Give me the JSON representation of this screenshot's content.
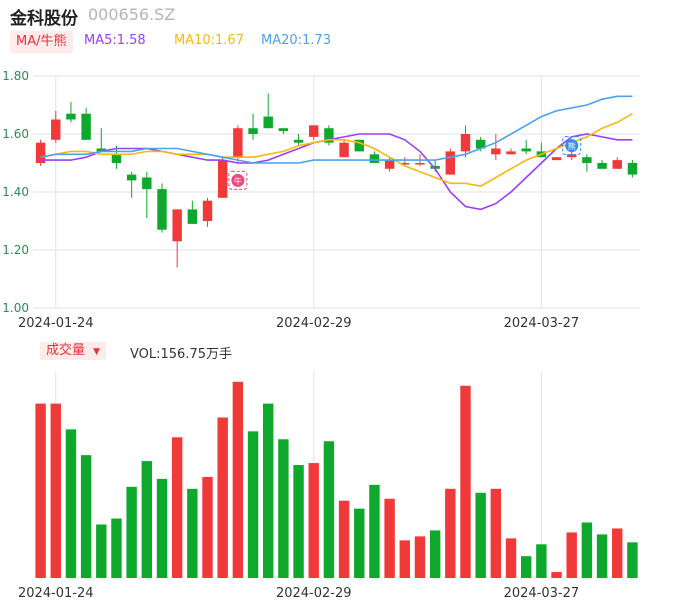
{
  "stock": {
    "name": "金科股份",
    "code": "000656.SZ"
  },
  "ma_legend": {
    "badge": "MA/牛熊",
    "items": [
      {
        "label": "MA5:1.58",
        "color": "#9b3ff5"
      },
      {
        "label": "MA10:1.67",
        "color": "#f5b90f"
      },
      {
        "label": "MA20:1.73",
        "color": "#4aa3ef"
      }
    ]
  },
  "volume_legend": {
    "badge": "成交量",
    "text": "VOL:156.75万手"
  },
  "markers": {
    "bull": "牛",
    "bear": "熊"
  },
  "colors": {
    "up": "#f03a3a",
    "down": "#0da82c",
    "axis": "#2e8b57",
    "grid": "#e3e3e3"
  },
  "chart_data": {
    "type": "candlestick",
    "x_ticks": [
      "2024-01-24",
      "2024-02-29",
      "2024-03-27"
    ],
    "x_tick_index": [
      1,
      18,
      33
    ],
    "y_ticks": [
      "1.80",
      "1.60",
      "1.40",
      "1.20",
      "1.00"
    ],
    "ylim": [
      1.0,
      1.8
    ],
    "candles": [
      {
        "o": 1.5,
        "h": 1.58,
        "l": 1.49,
        "c": 1.57
      },
      {
        "o": 1.58,
        "h": 1.68,
        "l": 1.57,
        "c": 1.65
      },
      {
        "o": 1.67,
        "h": 1.71,
        "l": 1.64,
        "c": 1.65
      },
      {
        "o": 1.67,
        "h": 1.69,
        "l": 1.58,
        "c": 1.58
      },
      {
        "o": 1.55,
        "h": 1.62,
        "l": 1.54,
        "c": 1.54
      },
      {
        "o": 1.53,
        "h": 1.56,
        "l": 1.48,
        "c": 1.5
      },
      {
        "o": 1.46,
        "h": 1.47,
        "l": 1.38,
        "c": 1.44
      },
      {
        "o": 1.45,
        "h": 1.47,
        "l": 1.31,
        "c": 1.41
      },
      {
        "o": 1.41,
        "h": 1.43,
        "l": 1.26,
        "c": 1.27
      },
      {
        "o": 1.23,
        "h": 1.34,
        "l": 1.14,
        "c": 1.34
      },
      {
        "o": 1.34,
        "h": 1.37,
        "l": 1.29,
        "c": 1.29
      },
      {
        "o": 1.3,
        "h": 1.38,
        "l": 1.28,
        "c": 1.37
      },
      {
        "o": 1.38,
        "h": 1.52,
        "l": 1.38,
        "c": 1.51
      },
      {
        "o": 1.52,
        "h": 1.63,
        "l": 1.5,
        "c": 1.62
      },
      {
        "o": 1.62,
        "h": 1.67,
        "l": 1.58,
        "c": 1.6
      },
      {
        "o": 1.66,
        "h": 1.74,
        "l": 1.62,
        "c": 1.62
      },
      {
        "o": 1.62,
        "h": 1.62,
        "l": 1.6,
        "c": 1.61
      },
      {
        "o": 1.58,
        "h": 1.6,
        "l": 1.56,
        "c": 1.57
      },
      {
        "o": 1.59,
        "h": 1.63,
        "l": 1.58,
        "c": 1.63
      },
      {
        "o": 1.62,
        "h": 1.63,
        "l": 1.56,
        "c": 1.57
      },
      {
        "o": 1.52,
        "h": 1.58,
        "l": 1.52,
        "c": 1.57
      },
      {
        "o": 1.58,
        "h": 1.58,
        "l": 1.54,
        "c": 1.54
      },
      {
        "o": 1.53,
        "h": 1.54,
        "l": 1.5,
        "c": 1.5
      },
      {
        "o": 1.48,
        "h": 1.52,
        "l": 1.47,
        "c": 1.51
      },
      {
        "o": 1.5,
        "h": 1.52,
        "l": 1.49,
        "c": 1.5
      },
      {
        "o": 1.5,
        "h": 1.53,
        "l": 1.49,
        "c": 1.5
      },
      {
        "o": 1.49,
        "h": 1.51,
        "l": 1.47,
        "c": 1.48
      },
      {
        "o": 1.46,
        "h": 1.55,
        "l": 1.46,
        "c": 1.54
      },
      {
        "o": 1.54,
        "h": 1.63,
        "l": 1.52,
        "c": 1.6
      },
      {
        "o": 1.58,
        "h": 1.59,
        "l": 1.54,
        "c": 1.55
      },
      {
        "o": 1.53,
        "h": 1.6,
        "l": 1.51,
        "c": 1.55
      },
      {
        "o": 1.53,
        "h": 1.55,
        "l": 1.53,
        "c": 1.54
      },
      {
        "o": 1.55,
        "h": 1.58,
        "l": 1.53,
        "c": 1.54
      },
      {
        "o": 1.54,
        "h": 1.57,
        "l": 1.52,
        "c": 1.52
      },
      {
        "o": 1.51,
        "h": 1.52,
        "l": 1.51,
        "c": 1.52
      },
      {
        "o": 1.52,
        "h": 1.56,
        "l": 1.51,
        "c": 1.53
      },
      {
        "o": 1.52,
        "h": 1.53,
        "l": 1.47,
        "c": 1.5
      },
      {
        "o": 1.5,
        "h": 1.51,
        "l": 1.48,
        "c": 1.48
      },
      {
        "o": 1.48,
        "h": 1.52,
        "l": 1.48,
        "c": 1.51
      },
      {
        "o": 1.5,
        "h": 1.51,
        "l": 1.45,
        "c": 1.46
      }
    ],
    "volume": [
      88,
      88,
      75,
      62,
      27,
      30,
      46,
      59,
      50,
      71,
      45,
      51,
      81,
      99,
      74,
      88,
      70,
      57,
      58,
      69,
      39,
      35,
      47,
      40,
      19,
      21,
      24,
      45,
      97,
      43,
      45,
      20,
      11,
      17,
      3,
      23,
      28,
      22,
      25,
      18
    ],
    "series": [
      {
        "name": "MA5",
        "color": "#9b3ff5",
        "values": [
          1.51,
          1.51,
          1.51,
          1.52,
          1.54,
          1.55,
          1.55,
          1.55,
          1.54,
          1.53,
          1.52,
          1.51,
          1.51,
          1.5,
          1.5,
          1.51,
          1.53,
          1.55,
          1.57,
          1.58,
          1.59,
          1.6,
          1.6,
          1.6,
          1.58,
          1.54,
          1.48,
          1.4,
          1.35,
          1.34,
          1.36,
          1.4,
          1.45,
          1.5,
          1.55,
          1.59,
          1.6,
          1.59,
          1.58,
          1.58
        ]
      },
      {
        "name": "MA10",
        "color": "#f5b90f",
        "values": [
          1.52,
          1.53,
          1.54,
          1.54,
          1.53,
          1.53,
          1.53,
          1.54,
          1.54,
          1.53,
          1.53,
          1.53,
          1.52,
          1.52,
          1.52,
          1.53,
          1.54,
          1.56,
          1.57,
          1.58,
          1.58,
          1.57,
          1.55,
          1.52,
          1.49,
          1.47,
          1.45,
          1.43,
          1.43,
          1.42,
          1.45,
          1.48,
          1.51,
          1.53,
          1.55,
          1.57,
          1.59,
          1.62,
          1.64,
          1.67
        ]
      },
      {
        "name": "MA20",
        "color": "#4aa3ef",
        "values": [
          1.52,
          1.53,
          1.53,
          1.53,
          1.54,
          1.54,
          1.54,
          1.55,
          1.55,
          1.55,
          1.54,
          1.53,
          1.52,
          1.51,
          1.5,
          1.5,
          1.5,
          1.5,
          1.51,
          1.51,
          1.51,
          1.51,
          1.51,
          1.51,
          1.51,
          1.51,
          1.51,
          1.52,
          1.53,
          1.55,
          1.57,
          1.6,
          1.63,
          1.66,
          1.68,
          1.69,
          1.7,
          1.72,
          1.73,
          1.73
        ]
      }
    ]
  }
}
